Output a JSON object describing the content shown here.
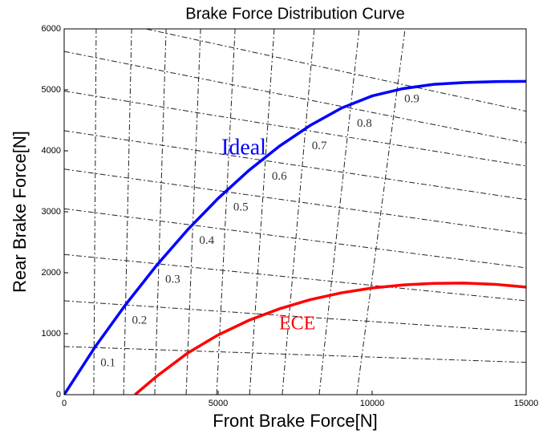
{
  "chart_data": {
    "type": "line",
    "title": "Brake Force Distribution Curve",
    "x_label": "Front Brake Force[N]",
    "y_label": "Rear Brake Force[N]",
    "xlim": [
      0,
      15000
    ],
    "ylim": [
      0,
      6000
    ],
    "xticks": [
      0,
      5000,
      10000,
      15000
    ],
    "yticks": [
      0,
      1000,
      2000,
      3000,
      4000,
      5000,
      6000
    ],
    "series": [
      {
        "name": "Ideal",
        "color": "#0000ff",
        "x": [
          0,
          1000,
          2000,
          3000,
          4000,
          5000,
          6000,
          7000,
          8000,
          9000,
          10000,
          11000,
          12000,
          13000,
          14000,
          15000
        ],
        "values": [
          0,
          780,
          1480,
          2120,
          2700,
          3220,
          3680,
          4080,
          4420,
          4700,
          4900,
          5020,
          5090,
          5120,
          5135,
          5140
        ]
      },
      {
        "name": "ECE",
        "color": "#ff0000",
        "x": [
          2300,
          3000,
          4000,
          5000,
          6000,
          7000,
          8000,
          9000,
          10000,
          11000,
          12000,
          13000,
          14000,
          15000
        ],
        "values": [
          0,
          300,
          680,
          980,
          1220,
          1410,
          1560,
          1670,
          1750,
          1800,
          1825,
          1830,
          1810,
          1765
        ]
      }
    ],
    "reference_lines": {
      "phi": [
        0.1,
        0.2,
        0.3,
        0.4,
        0.5,
        0.6,
        0.7,
        0.8,
        0.9
      ],
      "f_lines": {
        "y_start": [
          790,
          1540,
          2300,
          3050,
          3700,
          4330,
          4980,
          5630,
          6290
        ],
        "y_end": [
          530,
          1030,
          1540,
          2080,
          2640,
          3200,
          3750,
          4130,
          4650
        ]
      },
      "r_lines": {
        "x_bottom": [
          960,
          1930,
          2940,
          3960,
          4950,
          6020,
          7080,
          8280,
          9500
        ],
        "x_top": [
          1040,
          2190,
          3310,
          4430,
          5550,
          6820,
          8120,
          9580,
          11070
        ]
      }
    }
  }
}
